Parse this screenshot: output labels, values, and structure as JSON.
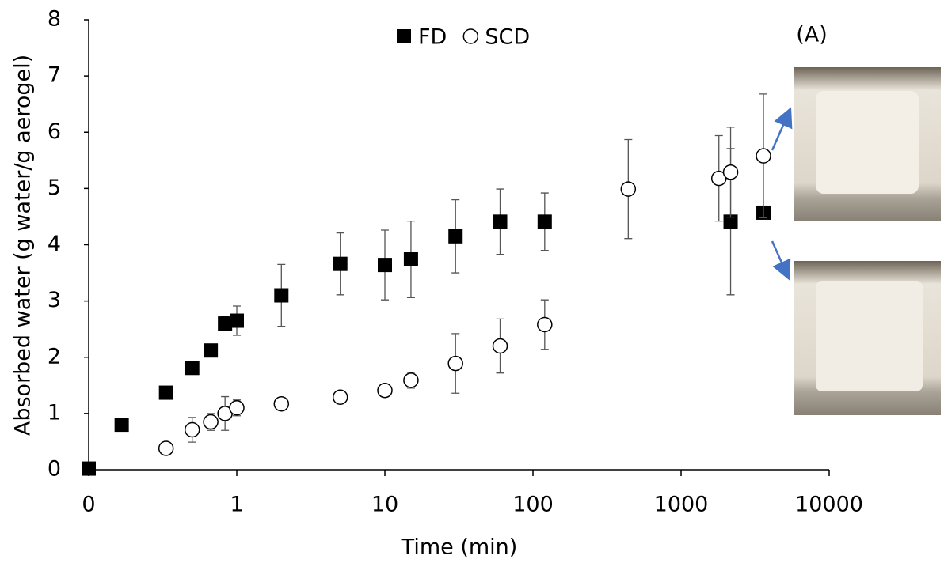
{
  "chart_data": {
    "type": "scatter",
    "xlabel": "Time (min)",
    "ylabel": "Absorbed water (g water/g aerogel)",
    "annotation": "(A)",
    "xscale": "log",
    "xlim": [
      0.1,
      10000
    ],
    "xticks": [
      {
        "value": 0.1,
        "label": "0"
      },
      1,
      10,
      100,
      1000,
      10000
    ],
    "ylim": [
      0,
      8
    ],
    "yticks": [
      0,
      1,
      2,
      3,
      4,
      5,
      6,
      7,
      8
    ],
    "grid": false,
    "legend": "top",
    "series": [
      {
        "name": "FD",
        "color": "#000000",
        "marker": "square",
        "x": [
          0.1,
          0.167,
          0.333,
          0.5,
          0.667,
          0.833,
          1,
          2,
          5,
          10,
          15,
          30,
          60,
          120,
          2160,
          3600
        ],
        "values": [
          0.02,
          0.8,
          1.37,
          1.81,
          2.12,
          2.6,
          2.65,
          3.1,
          3.66,
          3.64,
          3.74,
          4.15,
          4.41,
          4.41,
          4.41,
          4.57
        ],
        "errors": [
          0,
          0.03,
          0.04,
          0.04,
          0.05,
          0.13,
          0.26,
          0.55,
          0.55,
          0.62,
          0.68,
          0.65,
          0.58,
          0.51,
          1.3,
          0
        ]
      },
      {
        "name": "SCD",
        "color": "#000000",
        "marker": "circle",
        "x": [
          0.333,
          0.5,
          0.667,
          0.833,
          1,
          2,
          5,
          10,
          15,
          30,
          60,
          120,
          440,
          1800,
          2160,
          3600
        ],
        "values": [
          0.38,
          0.71,
          0.85,
          1.0,
          1.1,
          1.17,
          1.29,
          1.41,
          1.59,
          1.89,
          2.2,
          2.58,
          4.99,
          5.18,
          5.29,
          5.58
        ],
        "errors": [
          0.05,
          0.22,
          0.15,
          0.3,
          0.14,
          0.05,
          0.03,
          0.06,
          0.14,
          0.53,
          0.48,
          0.44,
          0.88,
          0.76,
          0.8,
          1.1
        ]
      }
    ]
  }
}
